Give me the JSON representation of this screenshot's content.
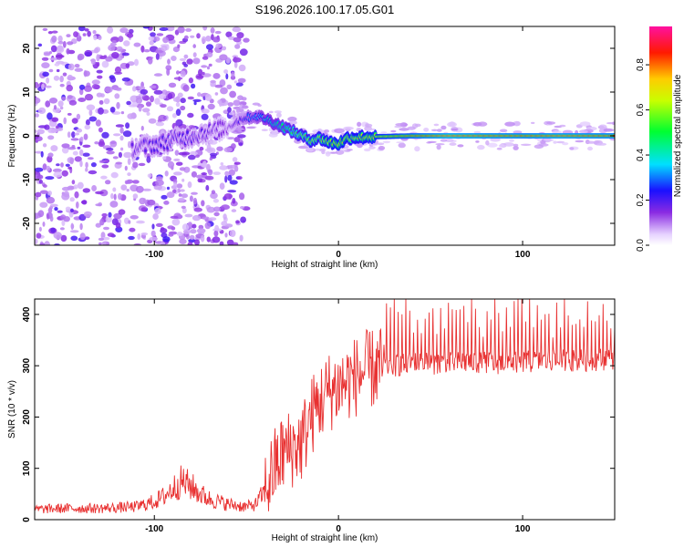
{
  "chart_data": [
    {
      "type": "heatmap",
      "title": "S196.2026.100.17.05.G01",
      "xlabel": "Height of straight line (km)",
      "ylabel": "Frequency (Hz)",
      "xlim": [
        -165,
        150
      ],
      "ylim": [
        -25,
        25
      ],
      "x_ticks": [
        -100,
        0,
        100
      ],
      "x_tick_labels": [
        "-100",
        "0",
        "100"
      ],
      "y_ticks": [
        -20,
        -10,
        0,
        10,
        20
      ],
      "y_tick_labels": [
        "-20",
        "-10",
        "0",
        "10",
        "20"
      ],
      "colorbar": {
        "label": "Normalized spectral amplitude",
        "range": [
          0,
          0.97
        ],
        "ticks": [
          0,
          0.2,
          0.4,
          0.6,
          0.8
        ],
        "tick_labels": [
          "0.0",
          "0.2",
          "0.4",
          "0.6",
          "0.8"
        ],
        "colormap": "rainbow (white-violet-blue-cyan-green-yellow-red-magenta)"
      },
      "ridge": {
        "description": "dominant frequency vs height",
        "x": [
          -112,
          -100,
          -90,
          -80,
          -70,
          -60,
          -52,
          -45,
          -40,
          -35,
          -30,
          -25,
          -20,
          -15,
          -10,
          -5,
          0,
          5,
          10,
          20,
          40,
          60,
          80,
          100,
          120,
          150
        ],
        "freq": [
          -3,
          -2,
          -1,
          0,
          1,
          2,
          4,
          4.5,
          4,
          3,
          2,
          1,
          0,
          -1,
          -0.5,
          -1.5,
          -1.8,
          -0.5,
          -0.3,
          -0.2,
          0,
          0,
          0,
          0,
          0,
          0
        ],
        "amplitude": [
          0.18,
          0.2,
          0.2,
          0.2,
          0.18,
          0.15,
          0.25,
          0.35,
          0.4,
          0.45,
          0.5,
          0.55,
          0.6,
          0.65,
          0.65,
          0.7,
          0.75,
          0.7,
          0.7,
          0.75,
          0.85,
          0.95,
          0.92,
          0.9,
          0.93,
          0.9
        ]
      },
      "noise_region_x": [
        -165,
        -60
      ]
    },
    {
      "type": "line",
      "title": "",
      "xlabel": "Height of straight line (km)",
      "ylabel": "SNR (10 * v/v)",
      "xlim": [
        -165,
        150
      ],
      "ylim": [
        0,
        430
      ],
      "x_ticks": [
        -100,
        0,
        100
      ],
      "x_tick_labels": [
        "-100",
        "0",
        "100"
      ],
      "y_ticks": [
        0,
        100,
        200,
        300,
        400
      ],
      "y_tick_labels": [
        "0",
        "100",
        "200",
        "300",
        "400"
      ],
      "series": [
        {
          "name": "SNR",
          "color": "#e83030",
          "x": [
            -165,
            -150,
            -130,
            -110,
            -100,
            -95,
            -90,
            -85,
            -80,
            -75,
            -70,
            -60,
            -50,
            -45,
            -40,
            -35,
            -30,
            -25,
            -20,
            -15,
            -10,
            -5,
            0,
            5,
            10,
            15,
            20,
            25,
            30,
            40,
            50,
            60,
            70,
            80,
            90,
            100,
            110,
            120,
            130,
            140,
            150
          ],
          "values": [
            20,
            22,
            22,
            25,
            35,
            45,
            60,
            75,
            65,
            50,
            40,
            30,
            25,
            30,
            55,
            100,
            130,
            140,
            150,
            200,
            230,
            250,
            260,
            270,
            280,
            290,
            295,
            300,
            300,
            305,
            305,
            305,
            308,
            305,
            305,
            308,
            308,
            310,
            310,
            312,
            315
          ]
        }
      ]
    }
  ]
}
